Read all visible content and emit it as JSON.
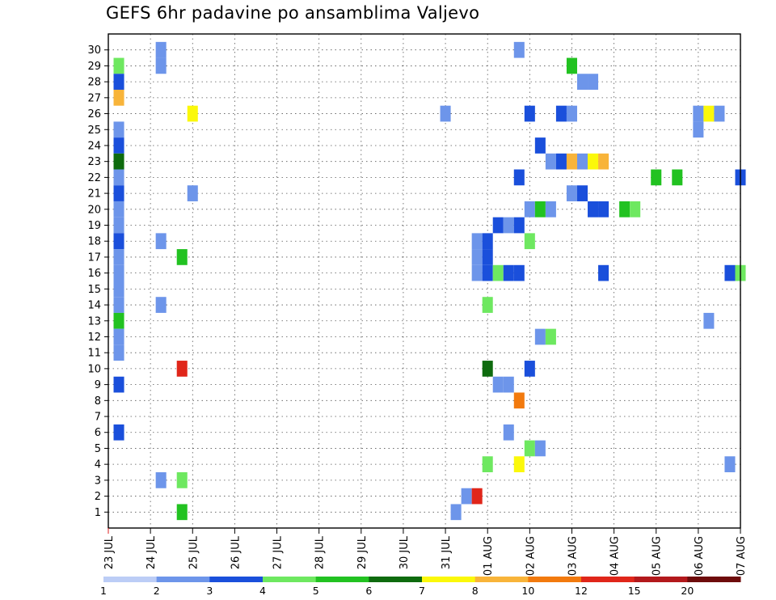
{
  "chart_data": {
    "type": "heatmap",
    "title": "GEFS 6hr padavine po ansamblima Valjevo",
    "xlabel": "",
    "ylabel": "",
    "x_ticks": [
      "23 JUL",
      "24 JUL",
      "25 JUL",
      "26 JUL",
      "27 JUL",
      "28 JUL",
      "29 JUL",
      "30 JUL",
      "31 JUL",
      "01 AUG",
      "02 AUG",
      "03 AUG",
      "04 AUG",
      "05 AUG",
      "06 AUG",
      "07 AUG"
    ],
    "x_unit": "6-hour step from 23 JUL 00Z",
    "xlim": [
      0,
      60
    ],
    "y_ticks": [
      1,
      2,
      3,
      4,
      5,
      6,
      7,
      8,
      9,
      10,
      11,
      12,
      13,
      14,
      15,
      16,
      17,
      18,
      19,
      20,
      21,
      22,
      23,
      24,
      25,
      26,
      27,
      28,
      29,
      30
    ],
    "ylim": [
      0,
      31
    ],
    "grid": true,
    "colorbar": {
      "levels": [
        1,
        2,
        3,
        4,
        5,
        6,
        7,
        8,
        10,
        12,
        15,
        20
      ],
      "colors": [
        "#bccdf6",
        "#6d95ea",
        "#1a4fdb",
        "#6ee860",
        "#22c221",
        "#0e6b0e",
        "#fbf80a",
        "#f8b43a",
        "#f27a0e",
        "#e0261a",
        "#b3191c",
        "#6e0c0c"
      ]
    },
    "points": [
      {
        "x": 1,
        "y": 29,
        "c": 3
      },
      {
        "x": 1,
        "y": 28,
        "c": 2
      },
      {
        "x": 1,
        "y": 27,
        "c": 7
      },
      {
        "x": 1,
        "y": 25,
        "c": 1
      },
      {
        "x": 1,
        "y": 24,
        "c": 2
      },
      {
        "x": 1,
        "y": 23,
        "c": 5
      },
      {
        "x": 1,
        "y": 22,
        "c": 1
      },
      {
        "x": 1,
        "y": 21,
        "c": 2
      },
      {
        "x": 1,
        "y": 20,
        "c": 1
      },
      {
        "x": 1,
        "y": 19,
        "c": 1
      },
      {
        "x": 1,
        "y": 18,
        "c": 2
      },
      {
        "x": 1,
        "y": 17,
        "c": 1
      },
      {
        "x": 1,
        "y": 16,
        "c": 1
      },
      {
        "x": 1,
        "y": 15,
        "c": 1
      },
      {
        "x": 1,
        "y": 14,
        "c": 1
      },
      {
        "x": 1,
        "y": 13,
        "c": 4
      },
      {
        "x": 1,
        "y": 12,
        "c": 1
      },
      {
        "x": 1,
        "y": 11,
        "c": 1
      },
      {
        "x": 1,
        "y": 9,
        "c": 2
      },
      {
        "x": 1,
        "y": 6,
        "c": 2
      },
      {
        "x": 5,
        "y": 30,
        "c": 1
      },
      {
        "x": 5,
        "y": 29,
        "c": 1
      },
      {
        "x": 5,
        "y": 18,
        "c": 1
      },
      {
        "x": 5,
        "y": 14,
        "c": 1
      },
      {
        "x": 5,
        "y": 3,
        "c": 1
      },
      {
        "x": 7,
        "y": 17,
        "c": 4
      },
      {
        "x": 7,
        "y": 10,
        "c": 9
      },
      {
        "x": 7,
        "y": 3,
        "c": 3
      },
      {
        "x": 7,
        "y": 1,
        "c": 4
      },
      {
        "x": 8,
        "y": 26,
        "c": 6
      },
      {
        "x": 8,
        "y": 21,
        "c": 1
      },
      {
        "x": 32,
        "y": 26,
        "c": 1
      },
      {
        "x": 33,
        "y": 1,
        "c": 1
      },
      {
        "x": 34,
        "y": 2,
        "c": 1
      },
      {
        "x": 35,
        "y": 18,
        "c": 1
      },
      {
        "x": 35,
        "y": 17,
        "c": 1
      },
      {
        "x": 35,
        "y": 16,
        "c": 1
      },
      {
        "x": 35,
        "y": 2,
        "c": 9
      },
      {
        "x": 36,
        "y": 18,
        "c": 2
      },
      {
        "x": 36,
        "y": 17,
        "c": 2
      },
      {
        "x": 36,
        "y": 16,
        "c": 2
      },
      {
        "x": 36,
        "y": 14,
        "c": 3
      },
      {
        "x": 36,
        "y": 10,
        "c": 5
      },
      {
        "x": 36,
        "y": 4,
        "c": 3
      },
      {
        "x": 37,
        "y": 19,
        "c": 2
      },
      {
        "x": 37,
        "y": 16,
        "c": 3
      },
      {
        "x": 37,
        "y": 9,
        "c": 1
      },
      {
        "x": 38,
        "y": 19,
        "c": 1
      },
      {
        "x": 38,
        "y": 16,
        "c": 2
      },
      {
        "x": 38,
        "y": 9,
        "c": 1
      },
      {
        "x": 38,
        "y": 6,
        "c": 1
      },
      {
        "x": 39,
        "y": 30,
        "c": 1
      },
      {
        "x": 39,
        "y": 22,
        "c": 2
      },
      {
        "x": 39,
        "y": 19,
        "c": 2
      },
      {
        "x": 39,
        "y": 16,
        "c": 2
      },
      {
        "x": 39,
        "y": 8,
        "c": 8
      },
      {
        "x": 39,
        "y": 4,
        "c": 6
      },
      {
        "x": 40,
        "y": 26,
        "c": 2
      },
      {
        "x": 40,
        "y": 20,
        "c": 1
      },
      {
        "x": 40,
        "y": 18,
        "c": 3
      },
      {
        "x": 40,
        "y": 10,
        "c": 2
      },
      {
        "x": 40,
        "y": 5,
        "c": 3
      },
      {
        "x": 41,
        "y": 24,
        "c": 2
      },
      {
        "x": 41,
        "y": 20,
        "c": 4
      },
      {
        "x": 41,
        "y": 12,
        "c": 1
      },
      {
        "x": 41,
        "y": 5,
        "c": 1
      },
      {
        "x": 42,
        "y": 23,
        "c": 1
      },
      {
        "x": 42,
        "y": 20,
        "c": 1
      },
      {
        "x": 42,
        "y": 12,
        "c": 3
      },
      {
        "x": 43,
        "y": 26,
        "c": 2
      },
      {
        "x": 43,
        "y": 23,
        "c": 2
      },
      {
        "x": 44,
        "y": 29,
        "c": 4
      },
      {
        "x": 44,
        "y": 26,
        "c": 1
      },
      {
        "x": 44,
        "y": 23,
        "c": 7
      },
      {
        "x": 44,
        "y": 21,
        "c": 1
      },
      {
        "x": 45,
        "y": 28,
        "c": 1
      },
      {
        "x": 45,
        "y": 23,
        "c": 1
      },
      {
        "x": 45,
        "y": 21,
        "c": 2
      },
      {
        "x": 46,
        "y": 28,
        "c": 1
      },
      {
        "x": 46,
        "y": 23,
        "c": 6
      },
      {
        "x": 46,
        "y": 20,
        "c": 2
      },
      {
        "x": 47,
        "y": 23,
        "c": 7
      },
      {
        "x": 47,
        "y": 20,
        "c": 2
      },
      {
        "x": 47,
        "y": 16,
        "c": 2
      },
      {
        "x": 49,
        "y": 20,
        "c": 4
      },
      {
        "x": 50,
        "y": 20,
        "c": 3
      },
      {
        "x": 52,
        "y": 22,
        "c": 4
      },
      {
        "x": 54,
        "y": 22,
        "c": 4
      },
      {
        "x": 56,
        "y": 26,
        "c": 1
      },
      {
        "x": 56,
        "y": 25,
        "c": 1
      },
      {
        "x": 57,
        "y": 26,
        "c": 6
      },
      {
        "x": 57,
        "y": 13,
        "c": 1
      },
      {
        "x": 58,
        "y": 26,
        "c": 1
      },
      {
        "x": 59,
        "y": 16,
        "c": 2
      },
      {
        "x": 59,
        "y": 4,
        "c": 1
      },
      {
        "x": 60,
        "y": 22,
        "c": 2
      },
      {
        "x": 60,
        "y": 16,
        "c": 3
      }
    ]
  }
}
